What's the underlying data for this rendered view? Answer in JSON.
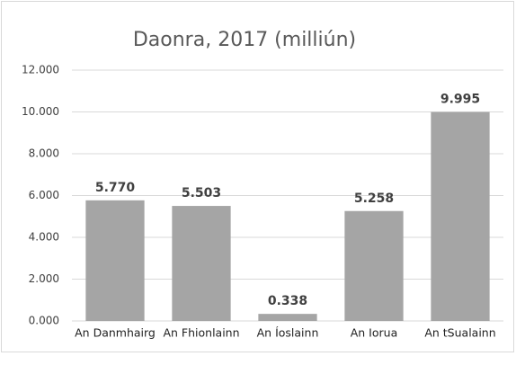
{
  "chart_data": {
    "type": "bar",
    "title": "Daonra, 2017 (milliún)",
    "categories": [
      "An Danmhairg",
      "An Fhionlainn",
      "An Íoslainn",
      "An Iorua",
      "An tSualainn"
    ],
    "values": [
      5.77,
      5.503,
      0.338,
      5.258,
      9.995
    ],
    "value_labels": [
      "5.770",
      "5.503",
      "0.338",
      "5.258",
      "9.995"
    ],
    "color": "#a5a5a5",
    "ylim": [
      0,
      12
    ],
    "yticks": [
      {
        "value": 0,
        "label": "0.000"
      },
      {
        "value": 2,
        "label": "2.000"
      },
      {
        "value": 4,
        "label": "4.000"
      },
      {
        "value": 6,
        "label": "6.000"
      },
      {
        "value": 8,
        "label": "8.000"
      },
      {
        "value": 10,
        "label": "10.000"
      },
      {
        "value": 12,
        "label": "12.000"
      }
    ],
    "grid": true
  }
}
